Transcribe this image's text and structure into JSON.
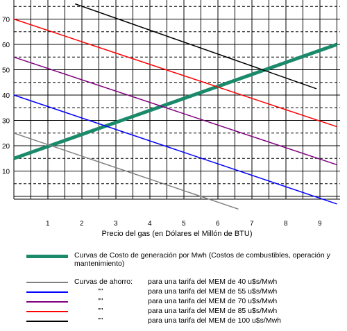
{
  "chart_data": {
    "type": "line",
    "xlabel": "Precio del gas  (en  Dólares el Millón de BTU)",
    "ylabel": "",
    "x_ticks": [
      "1",
      "2",
      "3",
      "4",
      "5",
      "6",
      "7",
      "8",
      "9"
    ],
    "y_ticks": [
      "10",
      "20",
      "30",
      "40",
      "50",
      "60",
      "70"
    ],
    "xlim": [
      0,
      9.5
    ],
    "ylim": [
      -3.5,
      78
    ],
    "grid": true,
    "series": [
      {
        "name": "Curvas de Costo de generación por Mwh (Costos de combustibles, operación y mantenimiento)",
        "color": "#1a8a6a",
        "width": 5,
        "x": [
          0,
          9.5
        ],
        "y": [
          15,
          60
        ]
      },
      {
        "name": "para  una tarifa del MEM de 40 u$s/Mwh",
        "color": "#808080",
        "width": 1.5,
        "x": [
          0,
          6.6
        ],
        "y": [
          25,
          -5
        ]
      },
      {
        "name": "para  una tarifa del MEM de 55 u$s/Mwh",
        "color": "#0000ff",
        "width": 1.5,
        "x": [
          0,
          9.5
        ],
        "y": [
          40,
          -3
        ]
      },
      {
        "name": "para  una tarifa del MEM de 70 u$s/Mwh",
        "color": "#800080",
        "width": 1.5,
        "x": [
          0,
          9.5
        ],
        "y": [
          55,
          12.5
        ]
      },
      {
        "name": "para  una tarifa del MEM de 85 u$s/Mwh",
        "color": "#ff0000",
        "width": 1.5,
        "x": [
          0,
          9.5
        ],
        "y": [
          70,
          27.5
        ]
      },
      {
        "name": "para  una tarifa del MEM de 100 u$s/Mwh",
        "color": "#000000",
        "width": 1.5,
        "x": [
          1.8,
          8.9
        ],
        "y": [
          76,
          42.5
        ]
      }
    ]
  },
  "legend": {
    "green": "Curvas de Costo de generación por Mwh (Costos de combustibles, operación y mantenimiento)",
    "savings_title": "Curvas de ahorro:",
    "ditto": "\"\"",
    "items": [
      "para  una tarifa del MEM de 40 u$s/Mwh",
      "para  una tarifa del MEM de 55 u$s/Mwh",
      "para  una tarifa del MEM de 70 u$s/Mwh",
      "para  una tarifa del MEM de 85 u$s/Mwh",
      "para  una tarifa del MEM de 100 u$s/Mwh"
    ],
    "colors": [
      "#808080",
      "#0000ff",
      "#800080",
      "#ff0000",
      "#000000"
    ]
  }
}
